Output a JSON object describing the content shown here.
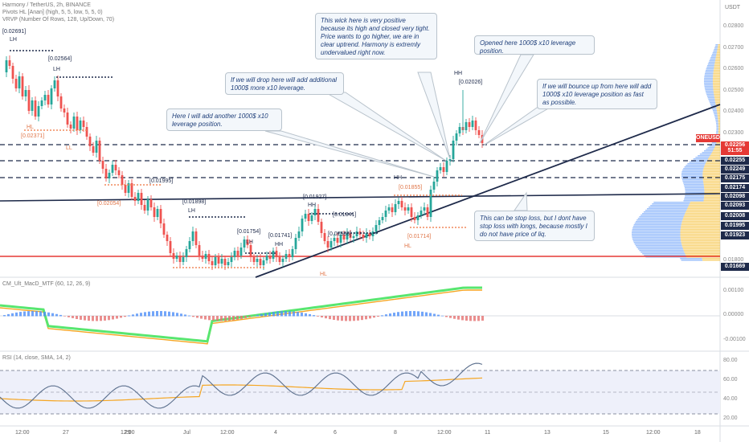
{
  "header": {
    "title": "Harmony / TetherUS, 2h, BINANCE",
    "indicator1": "Pivots HL [Anan] (high, 5, 5, low, 5, 5, 0)",
    "indicator2": "VRVP (Number Of Rows, 128, Up/Down, 70)",
    "currency": "USDT"
  },
  "price_axis": {
    "labels": [
      "0.02800",
      "0.02700",
      "0.02600",
      "0.02500",
      "0.02400",
      "0.02300",
      "0.02100",
      "0.02000",
      "0.01900",
      "0.01800",
      "0.01700",
      "0.01600"
    ],
    "badges": [
      {
        "text": "ONEUSDT",
        "color": "#e53935"
      },
      {
        "text": "0.02256",
        "color": "#e53935"
      },
      {
        "text": "51:55",
        "color": "#e53935"
      },
      {
        "text": "0.02255",
        "color": "#1e2a4a"
      },
      {
        "text": "0.02249",
        "color": "#1e2a4a"
      },
      {
        "text": "0.02175",
        "color": "#1e2a4a"
      },
      {
        "text": "0.02174",
        "color": "#1e2a4a"
      },
      {
        "text": "0.02098",
        "color": "#1e2a4a"
      },
      {
        "text": "0.02093",
        "color": "#1e2a4a"
      },
      {
        "text": "0.02008",
        "color": "#1e2a4a"
      },
      {
        "text": "0.01995",
        "color": "#1e2a4a"
      },
      {
        "text": "0.01923",
        "color": "#1e2a4a"
      },
      {
        "text": "0.01669",
        "color": "#1e2a4a"
      }
    ]
  },
  "pivot_labels": [
    {
      "text": "[0.02691]"
    },
    {
      "text": "LH"
    },
    {
      "text": "[0.02564]"
    },
    {
      "text": "LH"
    },
    {
      "text": "[0.02371]"
    },
    {
      "text": "LL"
    },
    {
      "text": "HL"
    },
    {
      "text": "[0.02054]"
    },
    {
      "text": "[0.01995]"
    },
    {
      "text": "[0.01898]"
    },
    {
      "text": "LH"
    },
    {
      "text": "[0.01754]"
    },
    {
      "text": "LH"
    },
    {
      "text": "[0.01741]"
    },
    {
      "text": "HH"
    },
    {
      "text": "[0.01927]"
    },
    {
      "text": "HH"
    },
    {
      "text": "[0.01841]"
    },
    {
      "text": "[0.02500]"
    },
    {
      "text": "HH"
    },
    {
      "text": "[0.02026]"
    },
    {
      "text": "HH"
    },
    {
      "text": "[0.01855]"
    },
    {
      "text": "HL"
    },
    {
      "text": "[0.01714]"
    },
    {
      "text": "HL"
    }
  ],
  "notes": {
    "n1": "This wick here is very positive because its high and closed very tight. Price wants to go higher, we are in clear uptrend. Harmony is extremly undervalued right now.",
    "n2": "Opened here 1000$ x10 leverage position.",
    "n3": "If we will drop here will add additional 1000$ more x10 leverage.",
    "n4": "If we will bounce up from here will add 1000$ x10 leverage position as fast as possible.",
    "n5": "Here I will add another 1000$ x10 leverage position.",
    "n6": "This can be stop loss, but I dont have stop loss with longs, because mostly I do not have price of liq."
  },
  "macd": {
    "title": "CM_Ult_MacD_MTF (60, 12, 26, 9)",
    "axis": [
      "0.00100",
      "0.00000",
      "-0.00100"
    ]
  },
  "rsi": {
    "title": "RSI (14, close, SMA, 14, 2)",
    "axis": [
      "80.00",
      "60.00",
      "40.00",
      "20.00"
    ]
  },
  "time_axis": {
    "labels": [
      "12:00",
      "27",
      "12:00",
      "29",
      "Jul",
      "12:00",
      "4",
      "6",
      "8",
      "12:00",
      "11",
      "13",
      "15",
      "12:00",
      "18"
    ]
  },
  "colors": {
    "up": "#26a69a",
    "down": "#ef5350",
    "trendline": "#1e2a4a",
    "support": "#e53935",
    "macd_up": "#58e66f",
    "macd_down": "#c62828",
    "signal": "#f5a623",
    "rsi": "#5a6e8c",
    "rsi_ma": "#f5a623",
    "vol_up": "#f5c242",
    "vol_down": "#4f8ef7"
  }
}
